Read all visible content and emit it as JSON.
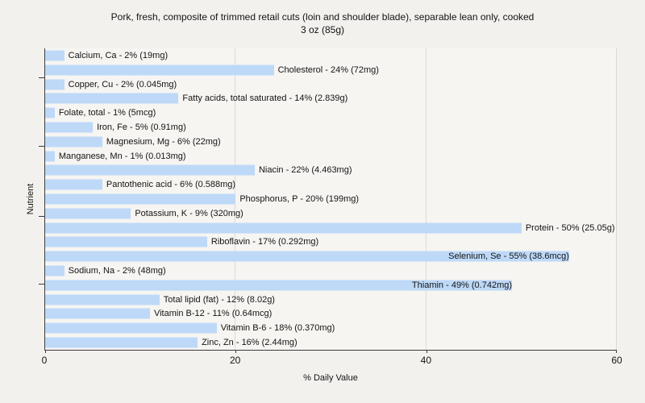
{
  "title": {
    "line1": "Pork, fresh, composite of trimmed retail cuts (loin and shoulder blade), separable lean only, cooked",
    "line2": "3 oz (85g)"
  },
  "axes": {
    "x_title": "% Daily Value",
    "y_title": "Nutrient",
    "x_ticks": [
      "0",
      "20",
      "40",
      "60"
    ],
    "x_tick_values": [
      0,
      20,
      40,
      60
    ],
    "x_max": 60
  },
  "colors": {
    "page_bg": "#f2f1ee",
    "plot_bg": "#f6f5f2",
    "bar": "#bed9f8",
    "gridline": "#dbdad7",
    "axis": "#3c3c3c",
    "text": "#141414"
  },
  "chart_data": {
    "type": "bar",
    "orientation": "horizontal",
    "title": "Pork, fresh, composite of trimmed retail cuts (loin and shoulder blade), separable lean only, cooked 3 oz (85g)",
    "xlabel": "% Daily Value",
    "ylabel": "Nutrient",
    "xlim": [
      0,
      60
    ],
    "x_ticks": [
      0,
      20,
      40,
      60
    ],
    "grid": "vertical-gridlines-at-20-40-60",
    "legend": "none",
    "items": [
      {
        "nutrient": "Calcium, Ca",
        "percent_dv": 2,
        "amount": "19mg",
        "label": "Calcium, Ca - 2% (19mg)"
      },
      {
        "nutrient": "Cholesterol",
        "percent_dv": 24,
        "amount": "72mg",
        "label": "Cholesterol - 24% (72mg)"
      },
      {
        "nutrient": "Copper, Cu",
        "percent_dv": 2,
        "amount": "0.045mg",
        "label": "Copper, Cu - 2% (0.045mg)"
      },
      {
        "nutrient": "Fatty acids, total saturated",
        "percent_dv": 14,
        "amount": "2.839g",
        "label": "Fatty acids, total saturated - 14% (2.839g)"
      },
      {
        "nutrient": "Folate, total",
        "percent_dv": 1,
        "amount": "5mcg",
        "label": "Folate, total - 1% (5mcg)"
      },
      {
        "nutrient": "Iron, Fe",
        "percent_dv": 5,
        "amount": "0.91mg",
        "label": "Iron, Fe - 5% (0.91mg)"
      },
      {
        "nutrient": "Magnesium, Mg",
        "percent_dv": 6,
        "amount": "22mg",
        "label": "Magnesium, Mg - 6% (22mg)"
      },
      {
        "nutrient": "Manganese, Mn",
        "percent_dv": 1,
        "amount": "0.013mg",
        "label": "Manganese, Mn - 1% (0.013mg)"
      },
      {
        "nutrient": "Niacin",
        "percent_dv": 22,
        "amount": "4.463mg",
        "label": "Niacin - 22% (4.463mg)"
      },
      {
        "nutrient": "Pantothenic acid",
        "percent_dv": 6,
        "amount": "0.588mg",
        "label": "Pantothenic acid - 6% (0.588mg)"
      },
      {
        "nutrient": "Phosphorus, P",
        "percent_dv": 20,
        "amount": "199mg",
        "label": "Phosphorus, P - 20% (199mg)"
      },
      {
        "nutrient": "Potassium, K",
        "percent_dv": 9,
        "amount": "320mg",
        "label": "Potassium, K - 9% (320mg)"
      },
      {
        "nutrient": "Protein",
        "percent_dv": 50,
        "amount": "25.05g",
        "label": "Protein - 50% (25.05g)"
      },
      {
        "nutrient": "Riboflavin",
        "percent_dv": 17,
        "amount": "0.292mg",
        "label": "Riboflavin - 17% (0.292mg)"
      },
      {
        "nutrient": "Selenium, Se",
        "percent_dv": 55,
        "amount": "38.6mcg",
        "label": "Selenium, Se - 55% (38.6mcg)"
      },
      {
        "nutrient": "Sodium, Na",
        "percent_dv": 2,
        "amount": "48mg",
        "label": "Sodium, Na - 2% (48mg)"
      },
      {
        "nutrient": "Thiamin",
        "percent_dv": 49,
        "amount": "0.742mg",
        "label": "Thiamin - 49% (0.742mg)"
      },
      {
        "nutrient": "Total lipid (fat)",
        "percent_dv": 12,
        "amount": "8.02g",
        "label": "Total lipid (fat) - 12% (8.02g)"
      },
      {
        "nutrient": "Vitamin B-12",
        "percent_dv": 11,
        "amount": "0.64mcg",
        "label": "Vitamin B-12 - 11% (0.64mcg)"
      },
      {
        "nutrient": "Vitamin B-6",
        "percent_dv": 18,
        "amount": "0.370mg",
        "label": "Vitamin B-6 - 18% (0.370mg)"
      },
      {
        "nutrient": "Zinc, Zn",
        "percent_dv": 16,
        "amount": "2.44mg",
        "label": "Zinc, Zn - 16% (2.44mg)"
      }
    ]
  }
}
